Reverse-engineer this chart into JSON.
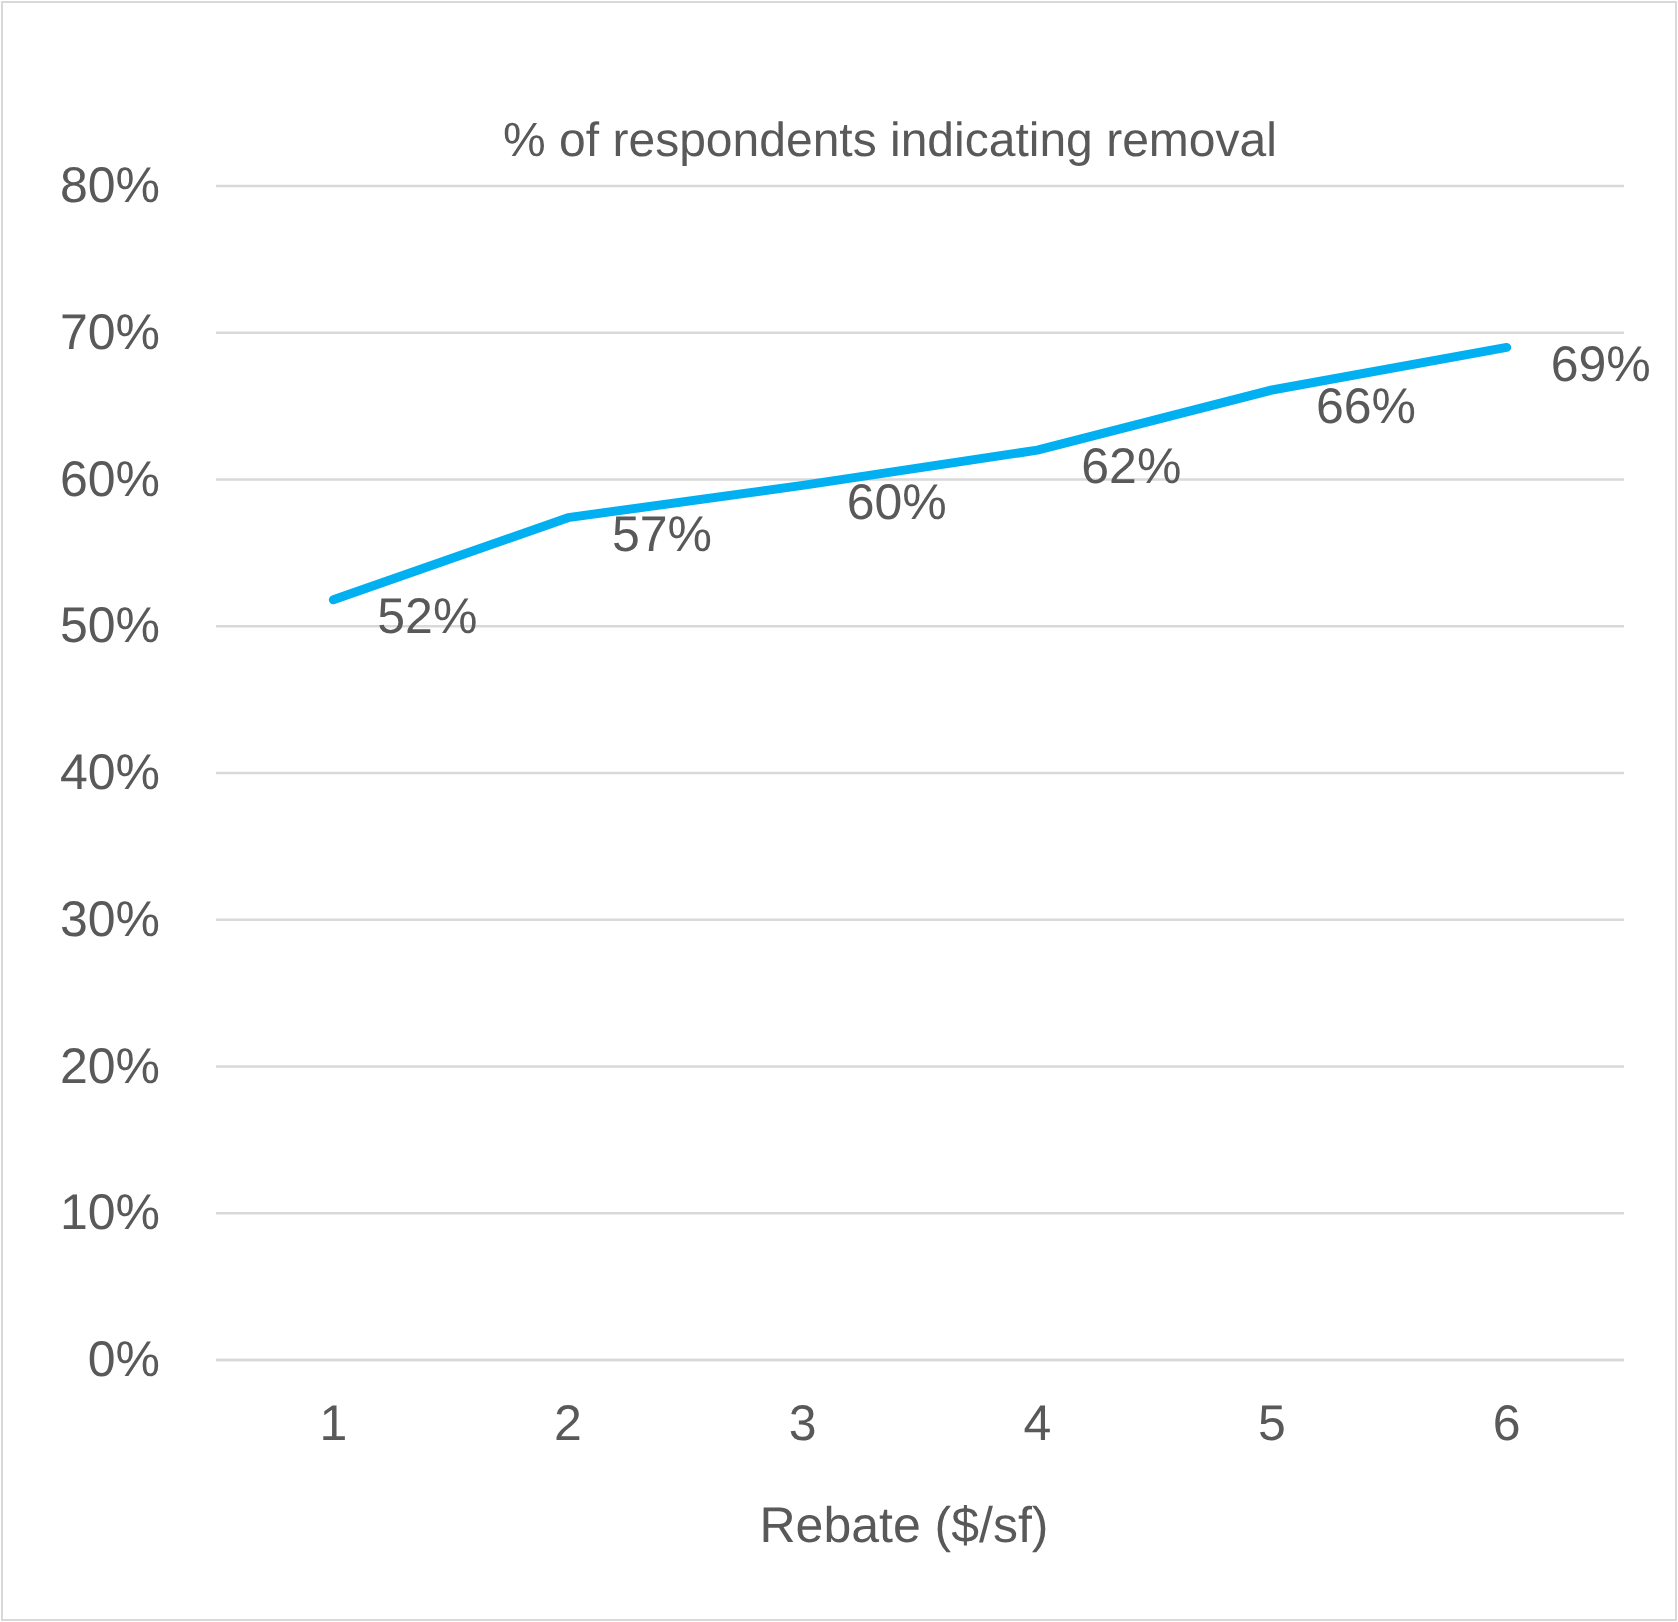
{
  "chart_data": {
    "type": "line",
    "title": "% of respondents indicating removal",
    "xlabel": "Rebate  ($/sf)",
    "categories": [
      "1",
      "2",
      "3",
      "4",
      "5",
      "6"
    ],
    "series": [
      {
        "color": "#00b0f0",
        "values": [
          51.8,
          57.4,
          59.6,
          62,
          66.1,
          69
        ],
        "value_labels": [
          "52%",
          "57%",
          "60%",
          "62%",
          "66%",
          "69%"
        ]
      }
    ],
    "ylim": [
      0,
      80
    ],
    "yticks": [
      {
        "value": 0,
        "label": "0%"
      },
      {
        "value": 10,
        "label": "10%"
      },
      {
        "value": 20,
        "label": "20%"
      },
      {
        "value": 30,
        "label": "30%"
      },
      {
        "value": 40,
        "label": "40%"
      },
      {
        "value": 50,
        "label": "50%"
      },
      {
        "value": 60,
        "label": "60%"
      },
      {
        "value": 70,
        "label": "70%"
      },
      {
        "value": 80,
        "label": "80%"
      }
    ],
    "grid": "y",
    "marker": "none",
    "line_style": "solid"
  }
}
